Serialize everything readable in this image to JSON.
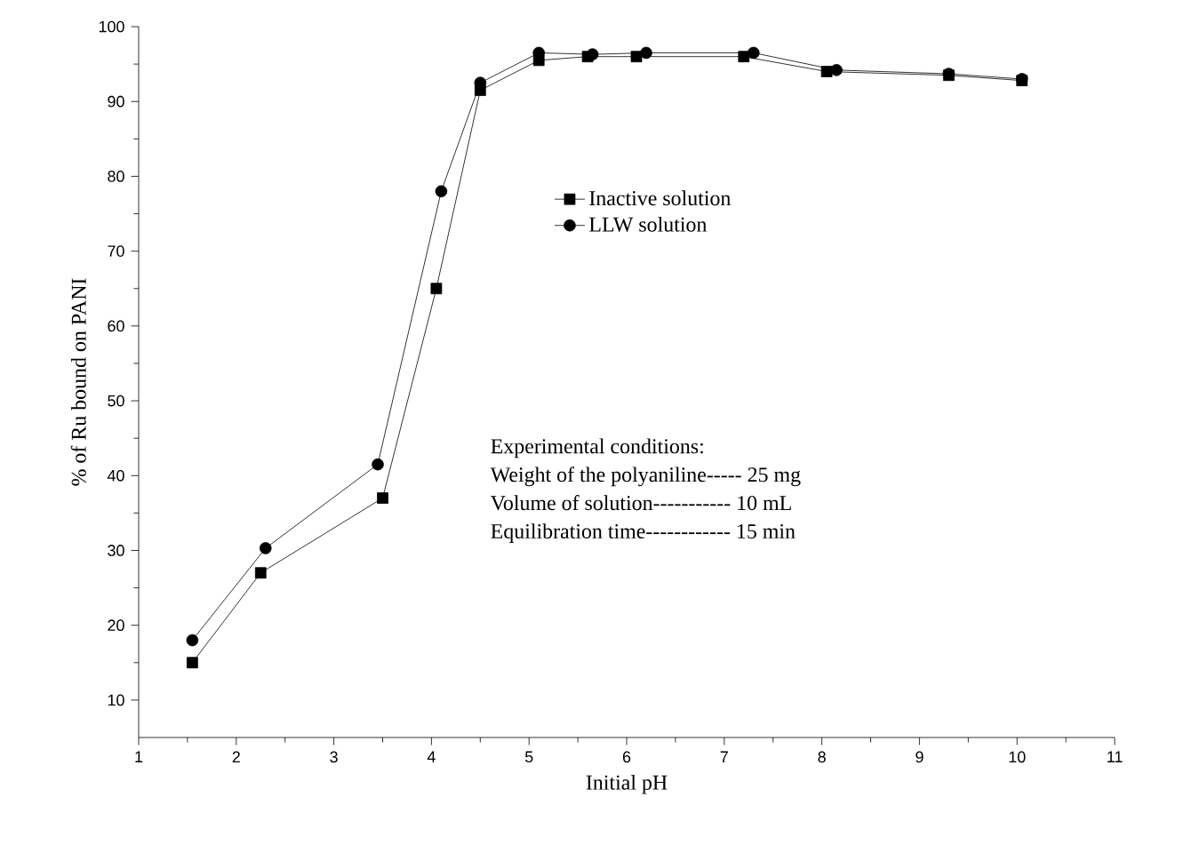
{
  "chart_data": {
    "type": "line",
    "xlabel": "Initial pH",
    "ylabel": "% of Ru bound on PANI",
    "xlim": [
      1,
      11
    ],
    "ylim": [
      5,
      100
    ],
    "xticks": [
      1,
      2,
      3,
      4,
      5,
      6,
      7,
      8,
      9,
      10,
      11
    ],
    "yticks": [
      10,
      20,
      30,
      40,
      50,
      60,
      70,
      80,
      90,
      100
    ],
    "legend": "right",
    "grid": false,
    "series": [
      {
        "name": "Inactive solution",
        "color": "#000000",
        "marker": "square",
        "x": [
          1.55,
          2.25,
          3.5,
          4.05,
          4.5,
          5.1,
          5.6,
          6.1,
          7.2,
          8.05,
          9.3,
          10.05
        ],
        "values": [
          15,
          27,
          37,
          65,
          91.5,
          95.5,
          96,
          96,
          96,
          94,
          93.5,
          92.8
        ]
      },
      {
        "name": "LLW solution",
        "color": "#000000",
        "marker": "circle",
        "x": [
          1.55,
          2.3,
          3.45,
          4.1,
          4.5,
          5.1,
          5.65,
          6.2,
          7.3,
          8.15,
          9.3,
          10.05
        ],
        "values": [
          18,
          30.3,
          41.5,
          78,
          92.5,
          96.5,
          96.3,
          96.5,
          96.5,
          94.2,
          93.7,
          93
        ]
      }
    ],
    "annotations": [
      "Experimental conditions:",
      "Weight of the polyaniline----- 25 mg",
      "Volume of solution----------- 10 mL",
      "Equilibration time------------ 15 min"
    ]
  }
}
